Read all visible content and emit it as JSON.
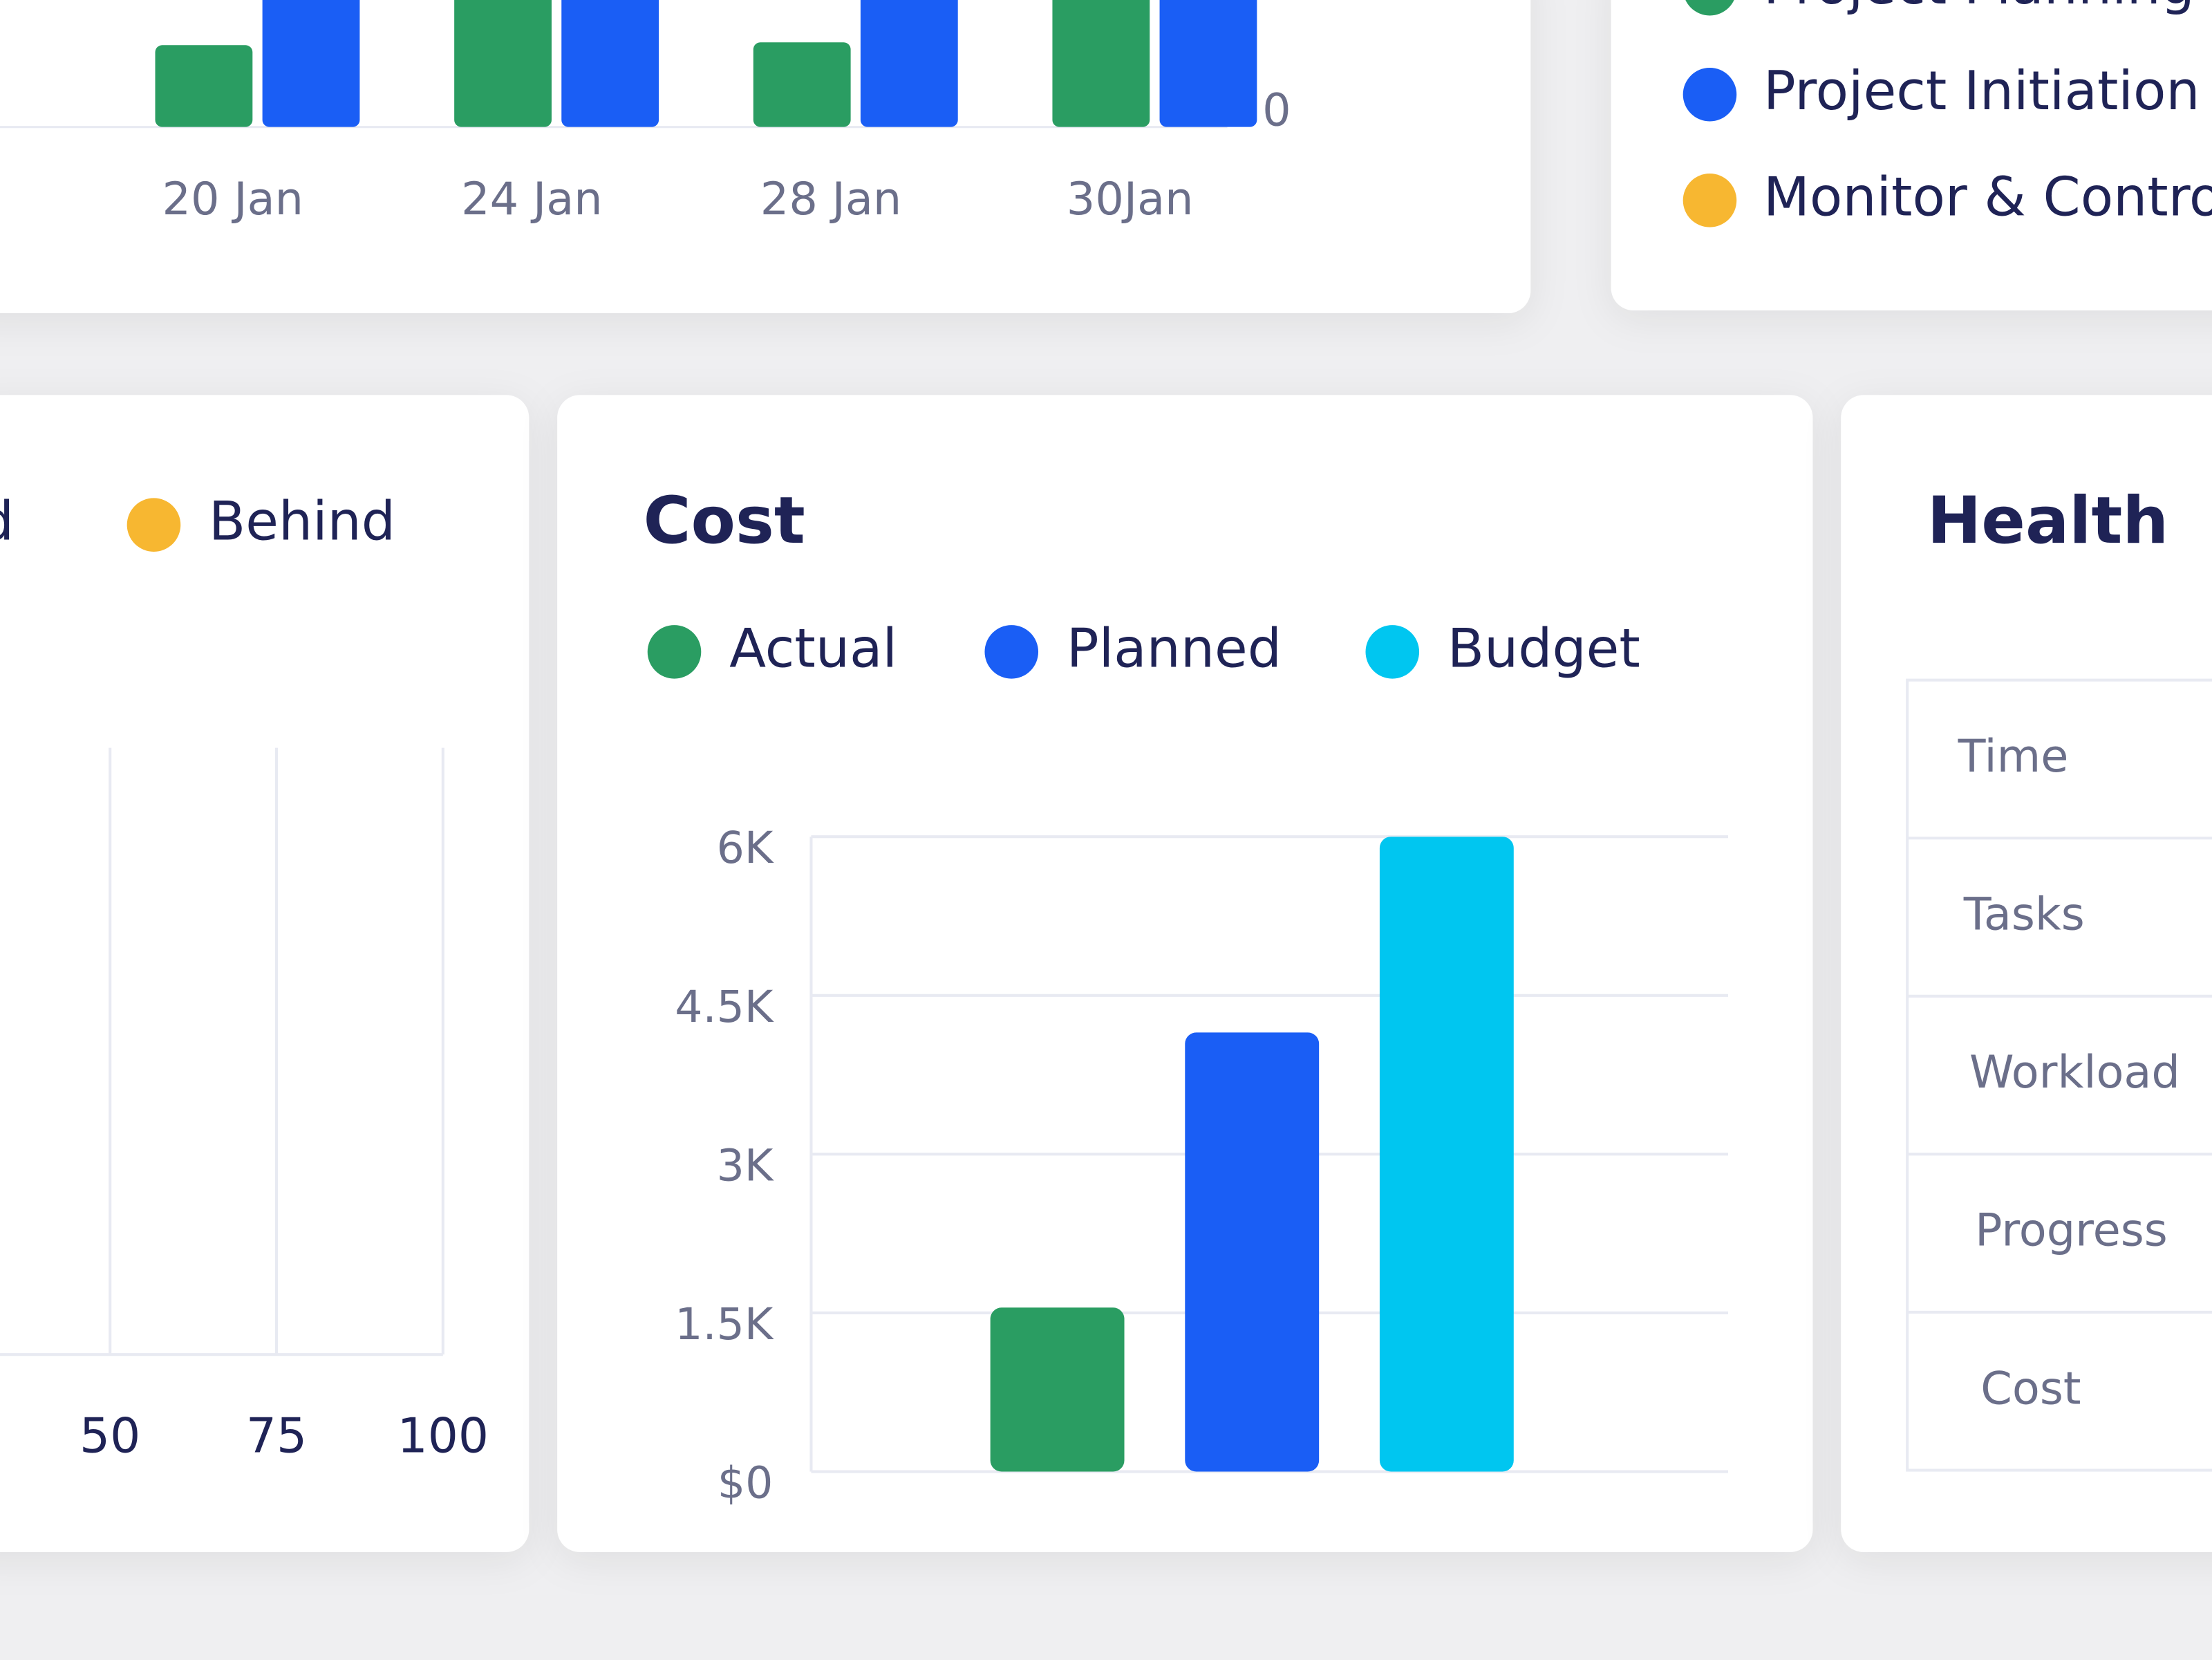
{
  "timeline_chart": {
    "type": "bar",
    "categories": [
      "20 Jan",
      "24 Jan",
      "28 Jan",
      "30Jan"
    ],
    "series": [
      {
        "color": "#2a9d62",
        "values": [
          58,
          95,
          60,
          95
        ]
      },
      {
        "color": "#1a5ef5",
        "values": [
          98,
          98,
          98,
          98
        ]
      }
    ],
    "ylim": [
      0,
      100
    ],
    "yticks": [
      0
    ]
  },
  "phases_legend": {
    "items": [
      {
        "label": "Project Planning",
        "color": "#2a9d62"
      },
      {
        "label": "Project Initiation",
        "color": "#1a5ef5"
      },
      {
        "label": "Monitor & Control",
        "color": "#f7b731"
      }
    ]
  },
  "schedule_chart": {
    "legend": [
      {
        "label": "Ahead",
        "color": "#2a9d62"
      },
      {
        "label": "Behind",
        "color": "#f7b731"
      }
    ],
    "xlim": [
      0,
      100
    ],
    "xticks": [
      50,
      75,
      100
    ],
    "grid": true
  },
  "cost_chart": {
    "type": "bar",
    "title": "Cost",
    "categories": [
      null
    ],
    "series": [
      {
        "name": "Actual",
        "color": "#2a9d62",
        "values": [
          1550
        ]
      },
      {
        "name": "Planned",
        "color": "#1a5ef5",
        "values": [
          4150
        ]
      },
      {
        "name": "Budget",
        "color": "#00c6f0",
        "values": [
          6000
        ]
      }
    ],
    "ylim": [
      0,
      6000
    ],
    "yticks": [
      {
        "value": 0,
        "label": "$0"
      },
      {
        "value": 1500,
        "label": "1.5K"
      },
      {
        "value": 3000,
        "label": "3K"
      },
      {
        "value": 4500,
        "label": "4.5K"
      },
      {
        "value": 6000,
        "label": "6K"
      }
    ],
    "grid": true
  },
  "health": {
    "title": "Health",
    "rows": [
      "Time",
      "Tasks",
      "Workload",
      "Progress",
      "Cost"
    ]
  }
}
